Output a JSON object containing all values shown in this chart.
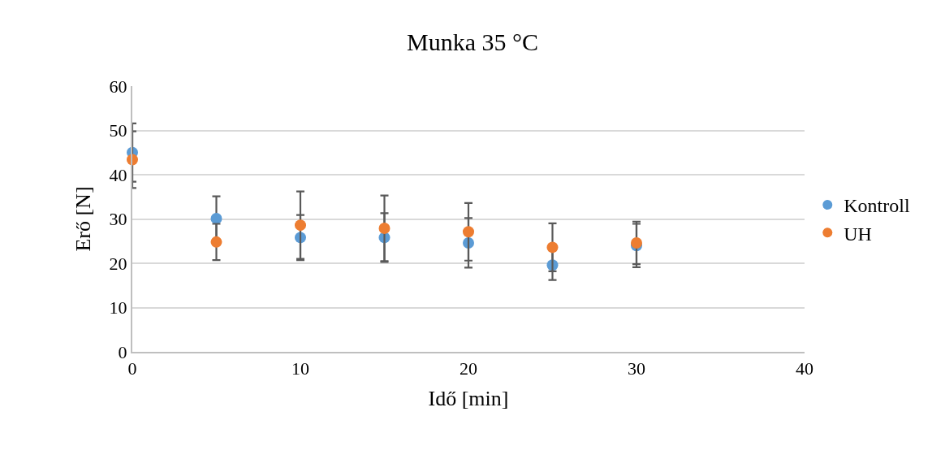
{
  "chart_data": {
    "type": "scatter",
    "title": "Munka 35 °C",
    "xlabel": "Idő [min]",
    "ylabel": "Erő [N]",
    "x": [
      0,
      5,
      10,
      15,
      20,
      25,
      30
    ],
    "series": [
      {
        "name": "Kontroll",
        "color": "#5b9bd5",
        "values": [
          45.0,
          30.1,
          25.8,
          25.8,
          24.6,
          19.6,
          24.0
        ],
        "errors": [
          6.6,
          5.0,
          5.1,
          5.5,
          5.6,
          3.4,
          4.9
        ]
      },
      {
        "name": "UH",
        "color": "#ed7d31",
        "values": [
          43.4,
          24.8,
          28.6,
          27.9,
          27.1,
          23.6,
          24.6
        ],
        "errors": [
          6.4,
          4.1,
          7.6,
          7.4,
          6.5,
          5.4,
          4.8
        ]
      }
    ],
    "xlim": [
      0,
      40
    ],
    "xticks": [
      0,
      10,
      20,
      30,
      40
    ],
    "ylim": [
      0,
      60
    ],
    "yticks": [
      0,
      10,
      20,
      30,
      40,
      50,
      60
    ],
    "grid": "y",
    "legend": "right",
    "marker": "circle"
  }
}
